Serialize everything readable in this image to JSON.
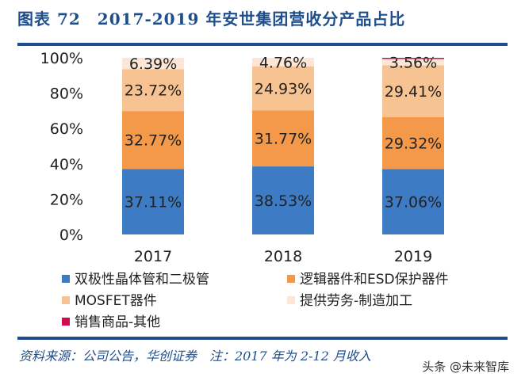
{
  "header": {
    "title": "图表 72　2017-2019 年安世集团营收分产品占比"
  },
  "footer": {
    "source": "资料来源：公司公告，华创证券　注：2017 年为 2-12 月收入",
    "watermark": "头条 @未来智库"
  },
  "colors": {
    "双极性晶体管和二极管": "#3d7cc4",
    "逻辑器件和ESD保护器件": "#f4984a",
    "MOSFET器件": "#f8c392",
    "提供劳务-制造加工": "#fde6d6",
    "销售商品-其他": "#d40a4e",
    "title": "#1f4e8c"
  },
  "chart_data": {
    "type": "bar",
    "stacked": true,
    "categories": [
      "2017",
      "2018",
      "2019"
    ],
    "ylim": [
      0,
      100
    ],
    "yticks": [
      "0%",
      "20%",
      "40%",
      "60%",
      "80%",
      "100%"
    ],
    "grid": false,
    "legend_position": "bottom",
    "series": [
      {
        "name": "双极性晶体管和二极管",
        "values": [
          37.11,
          38.53,
          37.06
        ],
        "labels": [
          "37.11%",
          "38.53%",
          "37.06%"
        ]
      },
      {
        "name": "逻辑器件和ESD保护器件",
        "values": [
          32.77,
          31.77,
          29.32
        ],
        "labels": [
          "32.77%",
          "31.77%",
          "29.32%"
        ]
      },
      {
        "name": "MOSFET器件",
        "values": [
          23.72,
          24.93,
          29.41
        ],
        "labels": [
          "23.72%",
          "24.93%",
          "29.41%"
        ]
      },
      {
        "name": "提供劳务-制造加工",
        "values": [
          6.39,
          4.76,
          3.56
        ],
        "labels": [
          "6.39%",
          "4.76%",
          "3.56%"
        ]
      },
      {
        "name": "销售商品-其他",
        "values": [
          0,
          0,
          0.65
        ],
        "labels": [
          "",
          "",
          ""
        ]
      }
    ]
  }
}
